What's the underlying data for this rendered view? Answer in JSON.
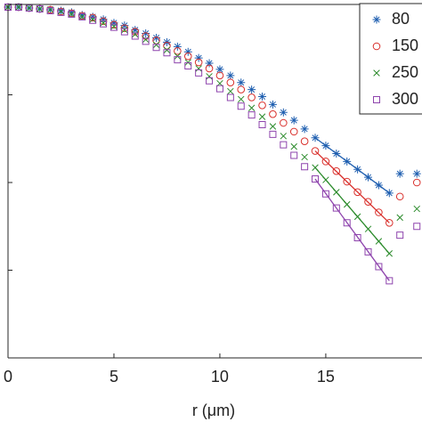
{
  "chart_data": {
    "type": "scatter",
    "x_label": "r (μm)",
    "x": [
      0,
      0.5,
      1,
      1.5,
      2,
      2.5,
      3,
      3.5,
      4,
      4.5,
      5,
      5.5,
      6,
      6.5,
      7,
      7.5,
      8,
      8.5,
      9,
      9.5,
      10,
      10.5,
      11,
      11.5,
      12,
      12.5,
      13,
      13.5,
      14,
      14.5,
      15,
      15.5,
      16,
      16.5,
      17,
      17.5,
      18,
      18.5,
      19.3
    ],
    "xlim": [
      0,
      19.5
    ],
    "xticks": [
      0,
      5,
      10,
      15
    ],
    "ylim": [
      -4,
      0
    ],
    "yticks": [
      -3,
      -2,
      -1
    ],
    "legend": "top-right",
    "series": [
      {
        "name": "80",
        "color": "#1f5fb0",
        "marker": "asterisk",
        "values": [
          0,
          0,
          -0.01,
          -0.02,
          -0.03,
          -0.04,
          -0.06,
          -0.09,
          -0.11,
          -0.14,
          -0.18,
          -0.21,
          -0.26,
          -0.3,
          -0.35,
          -0.4,
          -0.45,
          -0.51,
          -0.58,
          -0.64,
          -0.71,
          -0.78,
          -0.86,
          -0.94,
          -1.02,
          -1.11,
          -1.2,
          -1.29,
          -1.39,
          -1.49,
          -1.58,
          -1.67,
          -1.76,
          -1.85,
          -1.94,
          -2.03,
          -2.12,
          -1.9,
          -1.9
        ],
        "fit": {
          "x": [
            14.5,
            18
          ],
          "values": [
            -1.49,
            -2.12
          ]
        }
      },
      {
        "name": "150",
        "color": "#d9302c",
        "marker": "circle",
        "values": [
          0,
          0,
          -0.01,
          -0.02,
          -0.03,
          -0.05,
          -0.07,
          -0.1,
          -0.12,
          -0.16,
          -0.2,
          -0.24,
          -0.28,
          -0.33,
          -0.38,
          -0.44,
          -0.5,
          -0.56,
          -0.63,
          -0.7,
          -0.78,
          -0.86,
          -0.94,
          -1.03,
          -1.12,
          -1.22,
          -1.32,
          -1.42,
          -1.53,
          -1.64,
          -1.76,
          -1.87,
          -1.99,
          -2.11,
          -2.22,
          -2.34,
          -2.46,
          -2.16,
          -2.0
        ],
        "fit": {
          "x": [
            14.5,
            18
          ],
          "values": [
            -1.64,
            -2.46
          ]
        }
      },
      {
        "name": "250",
        "color": "#2a8a2a",
        "marker": "x",
        "values": [
          0,
          0,
          -0.01,
          -0.02,
          -0.03,
          -0.05,
          -0.08,
          -0.11,
          -0.14,
          -0.18,
          -0.22,
          -0.26,
          -0.31,
          -0.37,
          -0.43,
          -0.49,
          -0.56,
          -0.63,
          -0.7,
          -0.79,
          -0.87,
          -0.96,
          -1.05,
          -1.15,
          -1.25,
          -1.36,
          -1.47,
          -1.59,
          -1.71,
          -1.83,
          -1.97,
          -2.11,
          -2.25,
          -2.39,
          -2.53,
          -2.67,
          -2.81,
          -2.4,
          -2.3
        ],
        "fit": {
          "x": [
            14.5,
            18
          ],
          "values": [
            -1.83,
            -2.81
          ]
        }
      },
      {
        "name": "300",
        "color": "#8e44ad",
        "marker": "square",
        "values": [
          0,
          0,
          -0.01,
          -0.02,
          -0.04,
          -0.06,
          -0.08,
          -0.11,
          -0.15,
          -0.19,
          -0.23,
          -0.28,
          -0.33,
          -0.39,
          -0.46,
          -0.52,
          -0.6,
          -0.67,
          -0.75,
          -0.84,
          -0.93,
          -1.03,
          -1.13,
          -1.23,
          -1.34,
          -1.45,
          -1.57,
          -1.69,
          -1.82,
          -1.96,
          -2.13,
          -2.29,
          -2.46,
          -2.63,
          -2.79,
          -2.96,
          -3.12,
          -2.6,
          -2.5
        ],
        "fit": {
          "x": [
            14.5,
            18
          ],
          "values": [
            -1.96,
            -3.12
          ]
        }
      }
    ]
  }
}
